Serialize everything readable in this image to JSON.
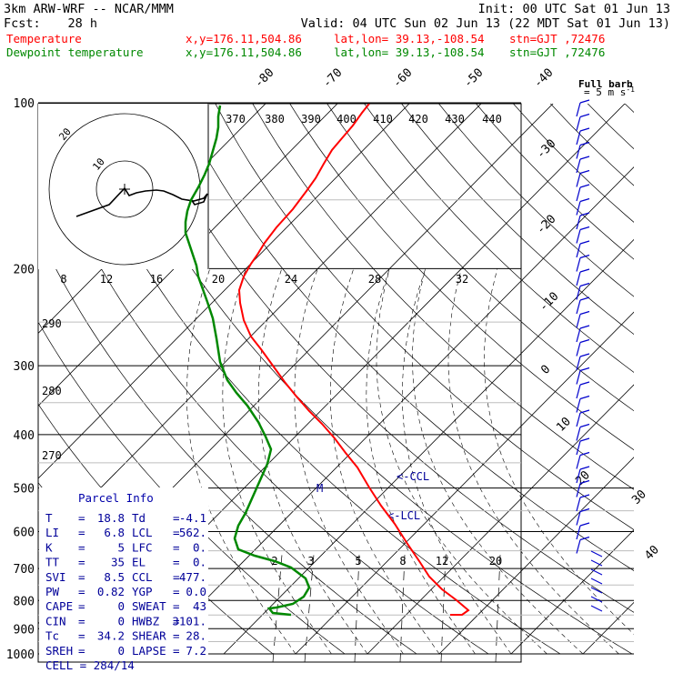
{
  "header": {
    "model": "3km ARW-WRF -- NCAR/MMM",
    "init": "Init: 00 UTC Sat 01 Jun 13",
    "fcst_label": "Fcst:",
    "fcst_value": "28 h",
    "valid": "Valid: 04 UTC Sun 02 Jun 13 (22 MDT Sat 01 Jun 13)"
  },
  "legend": [
    {
      "name": "Temperature",
      "xy": "x,y=176.11,504.86",
      "latlon": "lat,lon= 39.13,-108.54",
      "stn": "stn=GJT ,72476",
      "color": "#ff0000"
    },
    {
      "name": "Dewpoint temperature",
      "xy": "x,y=176.11,504.86",
      "latlon": "lat,lon= 39.13,-108.54",
      "stn": "stn=GJT ,72476",
      "color": "#008800"
    }
  ],
  "barb_title_1": "Full barb",
  "barb_title_2": "= 5 m s",
  "barb_title_exp": "-1",
  "hodo_units": "kts",
  "parcel_title": "Parcel Info",
  "chart_data": {
    "type": "line",
    "pressure_ticks": [
      100,
      200,
      300,
      400,
      500,
      600,
      700,
      800,
      900,
      1000
    ],
    "isotherm_labels": [
      -80,
      -70,
      -60,
      -50,
      -40,
      -30,
      -20,
      -10,
      0,
      10,
      20,
      30,
      40
    ],
    "theta_top_labels": [
      370,
      380,
      390,
      400,
      410,
      420,
      430,
      440
    ],
    "theta_side_labels": [
      290,
      280,
      270
    ],
    "hodo_ring_labels": [
      "10",
      "20"
    ],
    "hodo_speed_axis": [
      8,
      12,
      16,
      20,
      24,
      28,
      32
    ],
    "mixing_ratio_labels": [
      2,
      3,
      5,
      8,
      12,
      20
    ],
    "lcl_label": "<-LCL",
    "ccl_label": "<-CCL",
    "m_label": "M",
    "series": [
      {
        "name": "Temperature",
        "color": "#ff0000",
        "points": [
          [
            400,
            -40
          ],
          [
            350,
            -34
          ],
          [
            300,
            -28
          ],
          [
            250,
            -26
          ],
          [
            230,
            -28
          ],
          [
            200,
            -30
          ],
          [
            180,
            -30
          ],
          [
            160,
            -28
          ],
          [
            150,
            -25
          ],
          [
            130,
            -20
          ],
          [
            120,
            -16
          ],
          [
            100,
            -11
          ],
          [
            75,
            -4
          ],
          [
            55,
            0
          ],
          [
            38,
            3
          ],
          [
            18,
            11
          ],
          [
            9,
            13
          ],
          [
            0,
            18.8
          ],
          [
            -9,
            18.8
          ],
          [
            -18,
            19.4
          ],
          [
            -27,
            18.8
          ],
          [
            -36,
            17.2
          ],
          [
            -45,
            14
          ],
          [
            -54,
            10
          ],
          [
            -63,
            5
          ],
          [
            -72,
            0
          ],
          [
            -81,
            -3
          ],
          [
            -90,
            -5
          ],
          [
            -99,
            -6
          ],
          [
            -108,
            -6
          ]
        ]
      },
      {
        "name": "Dewpoint temperature",
        "color": "#008800",
        "points": [
          [
            0,
            -4.1
          ],
          [
            -9,
            -4.1
          ],
          [
            -18,
            -3
          ],
          [
            -27,
            -2
          ],
          [
            -33,
            -4
          ],
          [
            -36,
            -1
          ],
          [
            -45,
            1
          ],
          [
            -54,
            1
          ],
          [
            -63,
            -2
          ],
          [
            -72,
            -6
          ],
          [
            -90,
            -11
          ],
          [
            -99,
            -20
          ],
          [
            -108,
            -24
          ],
          [
            -126,
            -30
          ],
          [
            -144,
            -36
          ],
          [
            -162,
            -40
          ],
          [
            -180,
            -46
          ],
          [
            -198,
            -50
          ],
          [
            -216,
            -55
          ],
          [
            -234,
            -58
          ],
          [
            -252,
            -64
          ],
          [
            -270,
            -66
          ],
          [
            -288,
            -68
          ]
        ]
      }
    ],
    "parcel": {
      "T": "18.8",
      "Td": "-4.1",
      "LI": "6.8",
      "LCL": "562.",
      "K": "5",
      "LFC": "0.",
      "TT": "35",
      "EL": "0.",
      "SVI": "8.5",
      "CCL": "477.",
      "PW": "0.82",
      "YGP": "0.0",
      "CAPE": "0",
      "SWEAT": "43",
      "CIN": "0",
      "HWBZ": "3101.",
      "Tc": "34.2",
      "SHEAR": "28.",
      "SREH": "0",
      "LAPSE": "7.2",
      "CELL": "284/14"
    }
  }
}
